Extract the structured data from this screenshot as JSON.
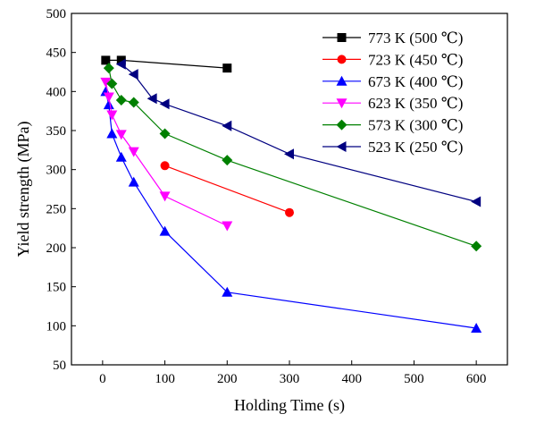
{
  "chart_data": {
    "type": "line",
    "xlabel": "Holding Time (s)",
    "ylabel": "Yield strength (MPa)",
    "xlim": [
      -50,
      650
    ],
    "ylim": [
      50,
      500
    ],
    "x_ticks": [
      0,
      100,
      200,
      300,
      400,
      500,
      600
    ],
    "y_ticks": [
      50,
      100,
      150,
      200,
      250,
      300,
      350,
      400,
      450,
      500
    ],
    "grid": false,
    "legend_position": "top-right",
    "series": [
      {
        "name": "773 K (500 ℃)",
        "color": "#000000",
        "marker": "square",
        "x": [
          5,
          30,
          200
        ],
        "y": [
          440,
          440,
          430
        ]
      },
      {
        "name": "723 K (450 ℃)",
        "color": "#ff0000",
        "marker": "circle",
        "x": [
          100,
          300
        ],
        "y": [
          305,
          245
        ]
      },
      {
        "name": "673 K (400 ℃)",
        "color": "#0000ff",
        "marker": "triangle-up",
        "x": [
          5,
          10,
          15,
          30,
          50,
          100,
          200,
          600
        ],
        "y": [
          400,
          383,
          346,
          316,
          284,
          221,
          143,
          97
        ]
      },
      {
        "name": "623 K (350 ℃)",
        "color": "#ff00ff",
        "marker": "triangle-down",
        "x": [
          5,
          10,
          15,
          30,
          50,
          100,
          200
        ],
        "y": [
          412,
          393,
          370,
          345,
          323,
          266,
          228
        ]
      },
      {
        "name": "573 K (300 ℃)",
        "color": "#008000",
        "marker": "diamond",
        "x": [
          10,
          15,
          30,
          50,
          100,
          200,
          600
        ],
        "y": [
          430,
          410,
          389,
          386,
          346,
          312,
          202
        ]
      },
      {
        "name": "523 K (250 ℃)",
        "color": "#000080",
        "marker": "triangle-left",
        "x": [
          30,
          50,
          80,
          100,
          200,
          300,
          600
        ],
        "y": [
          435,
          422,
          391,
          384,
          356,
          320,
          259
        ]
      }
    ]
  }
}
